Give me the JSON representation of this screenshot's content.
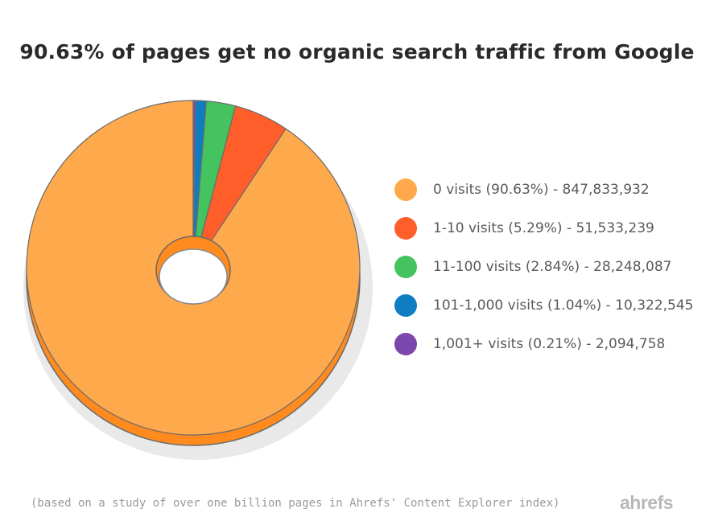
{
  "chart_data": {
    "type": "pie",
    "title": "90.63% of pages get no organic search traffic from Google",
    "slices": [
      {
        "label": "0 visits (90.63%) - 847,833,932",
        "value": 90.63,
        "color": "#FFA94D"
      },
      {
        "label": "1-10 visits (5.29%) - 51,533,239",
        "value": 5.29,
        "color": "#FF5E2A"
      },
      {
        "label": "11-100 visits (2.84%) - 28,248,087",
        "value": 2.84,
        "color": "#44C35F"
      },
      {
        "label": "101-1,000 visits (1.04%) - 10,322,545",
        "value": 1.04,
        "color": "#0F7DC2"
      },
      {
        "label": "1,001+ visits (0.21%) - 2,094,758",
        "value": 0.21,
        "color": "#7B46AE"
      }
    ],
    "legend": "right",
    "footnote": "(based on a study of over one billion pages in Ahrefs' Content Explorer index)"
  },
  "brand": {
    "logo_text": "ahrefs"
  }
}
